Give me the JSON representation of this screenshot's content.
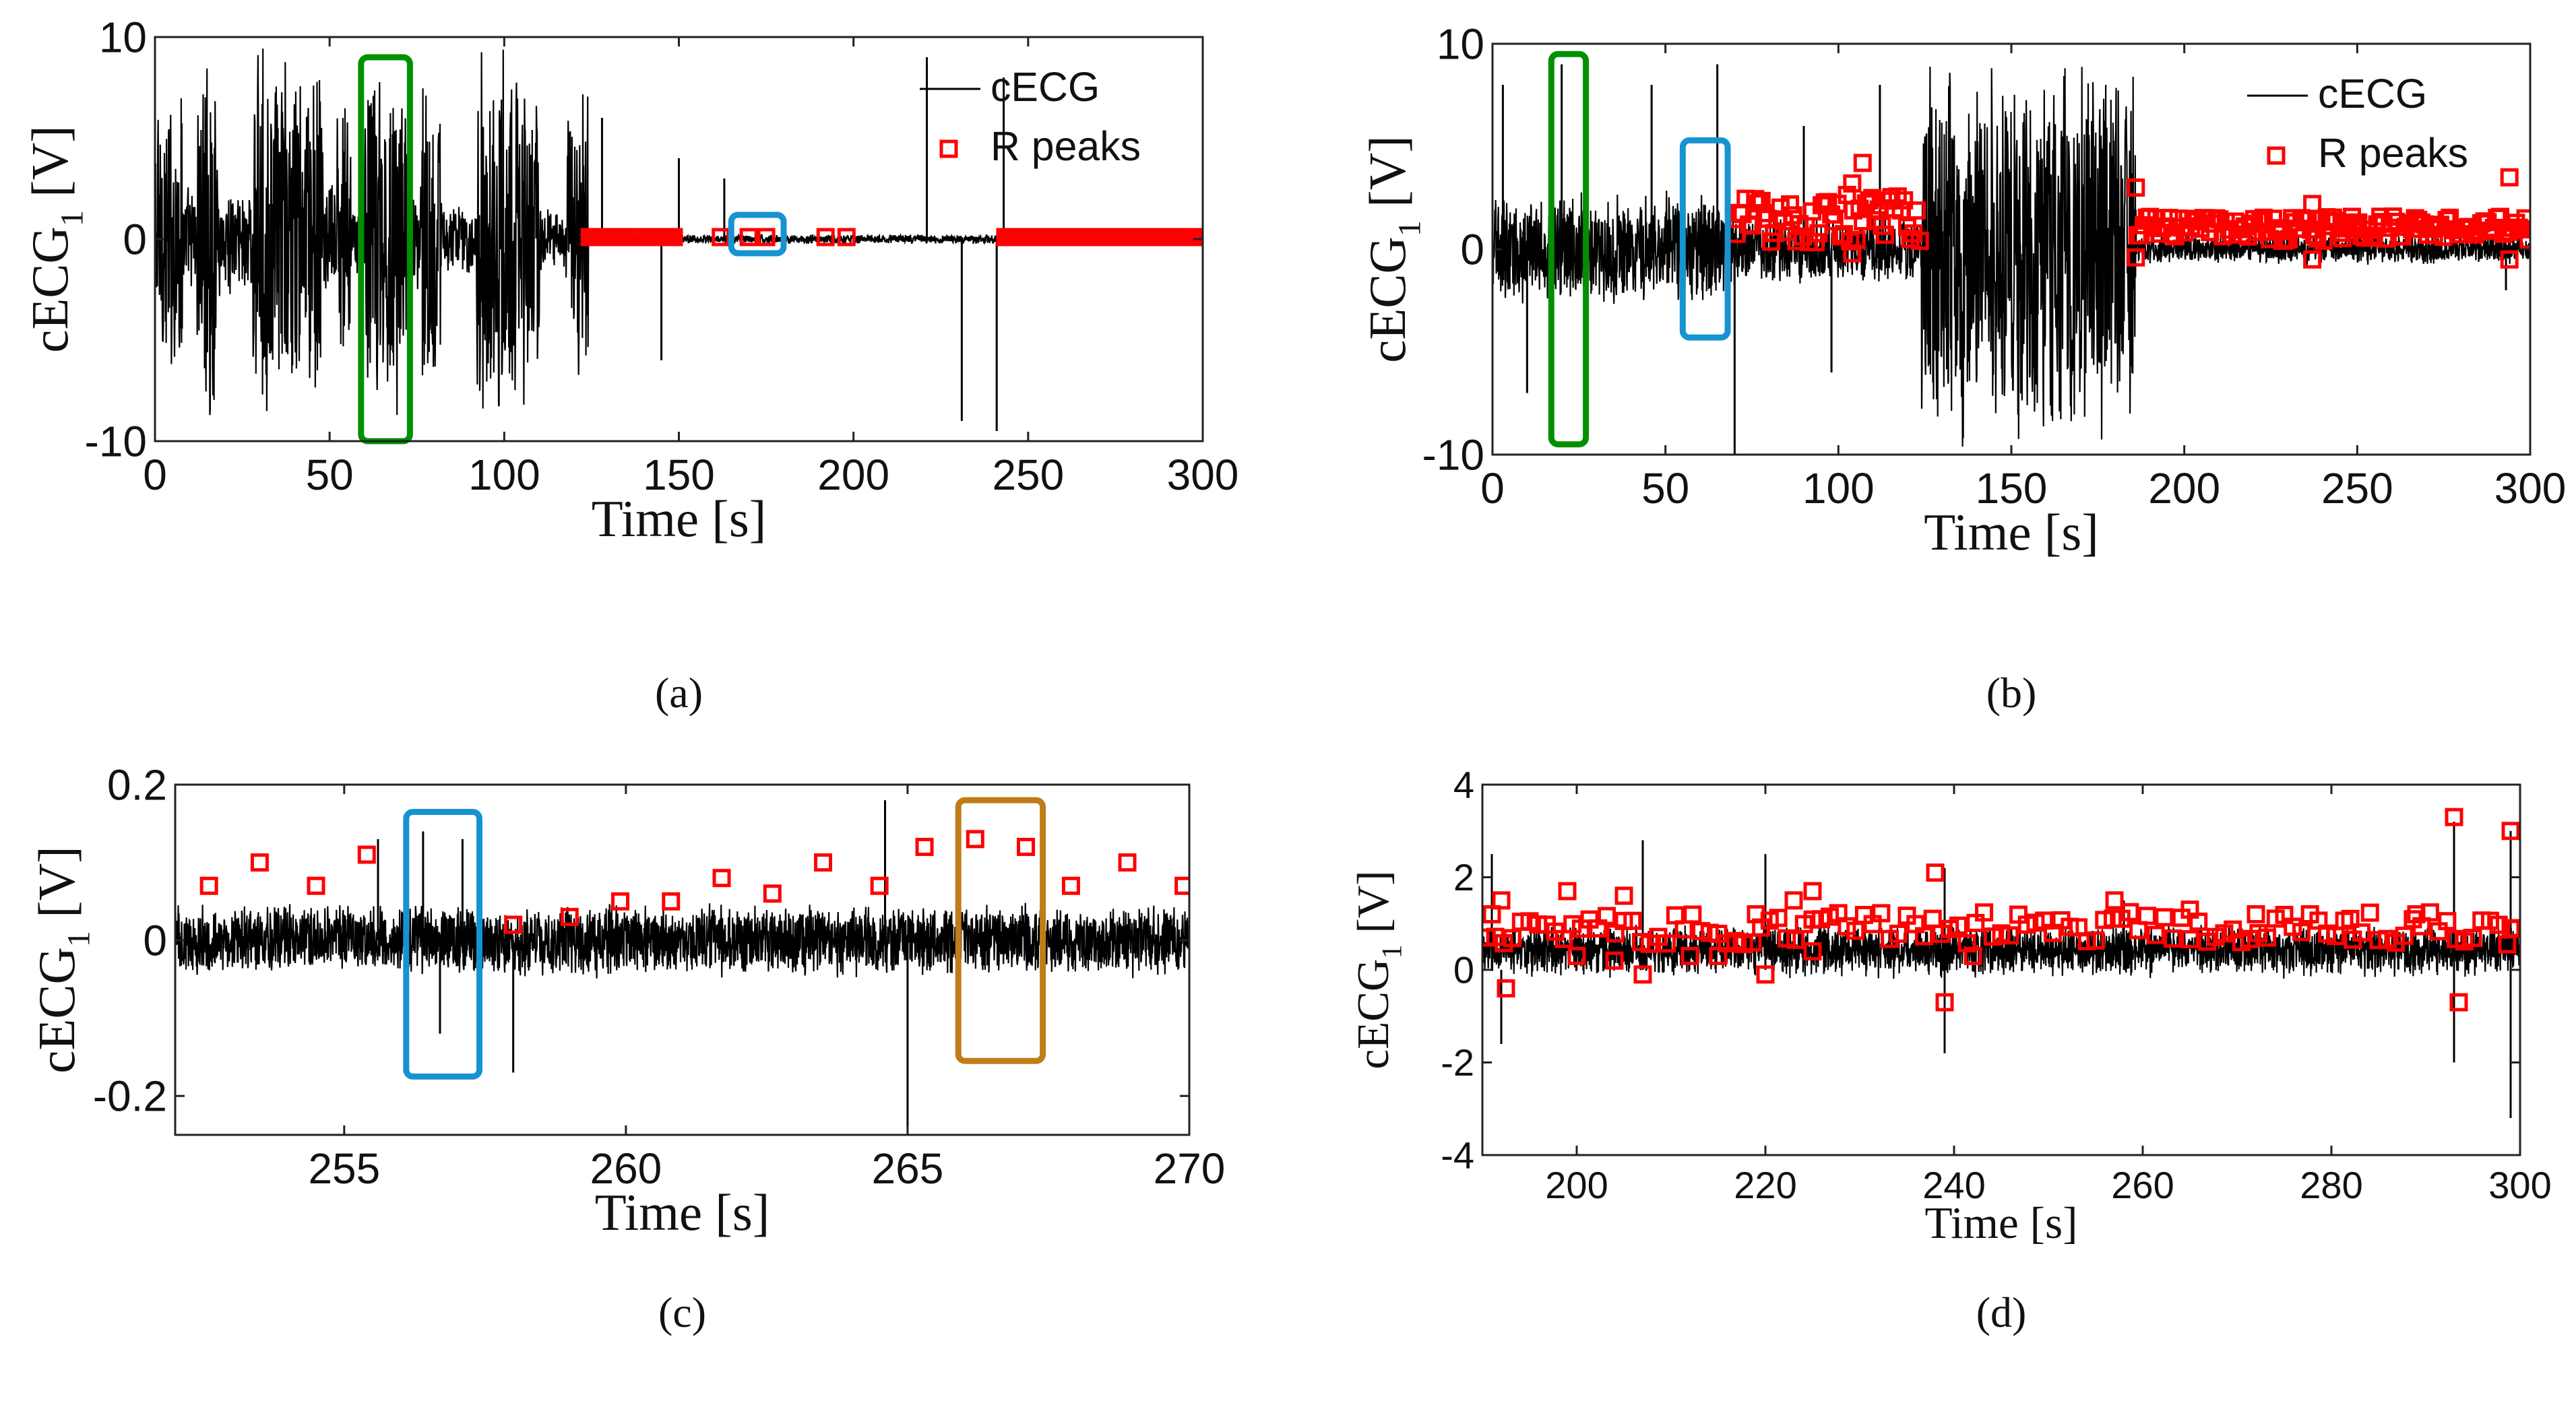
{
  "chart_data": [
    {
      "panel": "(a)",
      "type": "line",
      "xlabel": "Time [s]",
      "ylabel": "cECG",
      "ylabel_sub": "1",
      "ylabel_unit": " [V]",
      "xlim": [
        0,
        300
      ],
      "ylim": [
        -10,
        10
      ],
      "xticks": [
        0,
        50,
        100,
        150,
        200,
        250,
        300
      ],
      "yticks": [
        -10,
        0,
        10
      ],
      "legend": {
        "position": "top-right",
        "entries": [
          "cECG",
          "R peaks"
        ]
      },
      "series": [
        {
          "name": "cECG",
          "color": "#000000",
          "kind": "signal",
          "segments": [
            {
              "from": 0,
              "to": 8,
              "amp": 8.5
            },
            {
              "from": 8,
              "to": 12,
              "amp": 3
            },
            {
              "from": 12,
              "to": 18,
              "amp": 10
            },
            {
              "from": 18,
              "to": 28,
              "amp": 3
            },
            {
              "from": 28,
              "to": 48,
              "amp": 10
            },
            {
              "from": 48,
              "to": 52,
              "amp": 3
            },
            {
              "from": 52,
              "to": 56,
              "amp": 8
            },
            {
              "from": 56,
              "to": 60,
              "amp": 2
            },
            {
              "from": 60,
              "to": 72,
              "amp": 10
            },
            {
              "from": 72,
              "to": 76,
              "amp": 3
            },
            {
              "from": 76,
              "to": 82,
              "amp": 9
            },
            {
              "from": 82,
              "to": 92,
              "amp": 2
            },
            {
              "from": 92,
              "to": 110,
              "amp": 10
            },
            {
              "from": 110,
              "to": 118,
              "amp": 2
            },
            {
              "from": 118,
              "to": 124,
              "amp": 8.5
            },
            {
              "from": 124,
              "to": 300,
              "amp": 0.25
            }
          ],
          "spikes": [
            [
              128,
              6
            ],
            [
              145,
              -6
            ],
            [
              150,
              4
            ],
            [
              163,
              3
            ],
            [
              221,
              9
            ],
            [
              231,
              -9
            ],
            [
              241,
              -9.5
            ],
            [
              243,
              8
            ]
          ]
        },
        {
          "name": "R peaks",
          "color": "#ff0000",
          "kind": "markers",
          "clusters": [
            {
              "from": 124,
              "to": 138,
              "y": 0.1
            },
            {
              "from": 141,
              "to": 149,
              "y": 0.1
            },
            {
              "from": 243,
              "to": 300,
              "y": 0.1
            }
          ],
          "points": [
            [
              162,
              0.1
            ],
            [
              170,
              0.1
            ],
            [
              175,
              0.1
            ],
            [
              192,
              0.1
            ],
            [
              198,
              0.1
            ],
            [
              284,
              0.1
            ]
          ]
        }
      ],
      "annotations": [
        {
          "type": "rect",
          "color": "#009000",
          "x": [
            59,
            73
          ],
          "y": [
            -10,
            9
          ]
        },
        {
          "type": "rect",
          "color": "#1793d0",
          "x": [
            165,
            180
          ],
          "y": [
            -0.7,
            1.2
          ]
        }
      ]
    },
    {
      "panel": "(b)",
      "type": "line",
      "xlabel": "Time [s]",
      "ylabel": "cECG",
      "ylabel_sub": "1",
      "ylabel_unit": " [V]",
      "xlim": [
        0,
        300
      ],
      "ylim": [
        -10,
        10
      ],
      "xticks": [
        0,
        50,
        100,
        150,
        200,
        250,
        300
      ],
      "yticks": [
        -10,
        0,
        10
      ],
      "legend": {
        "position": "top-right",
        "entries": [
          "cECG",
          "R peaks"
        ]
      },
      "series": [
        {
          "name": "cECG",
          "color": "#000000",
          "kind": "signal",
          "segments": [
            {
              "from": 0,
              "to": 70,
              "amp": 3
            },
            {
              "from": 70,
              "to": 124,
              "amp": 1.8
            },
            {
              "from": 124,
              "to": 186,
              "amp": 10
            },
            {
              "from": 186,
              "to": 300,
              "amp": 0.8
            }
          ],
          "spikes": [
            [
              3,
              8
            ],
            [
              10,
              -7
            ],
            [
              20,
              9
            ],
            [
              46,
              8
            ],
            [
              65,
              9
            ],
            [
              70,
              -10
            ],
            [
              90,
              6
            ],
            [
              98,
              -6
            ],
            [
              112,
              8
            ],
            [
              293,
              -2
            ]
          ]
        },
        {
          "name": "R peaks",
          "color": "#ff0000",
          "kind": "markers",
          "clusters": [
            {
              "from": 70,
              "to": 124,
              "y": 1.5,
              "spread": 1.2
            },
            {
              "from": 186,
              "to": 300,
              "y": 1.0,
              "spread": 0.6
            }
          ],
          "points": [
            [
              107,
              4.2
            ],
            [
              104,
              3.2
            ],
            [
              104,
              -0.2
            ],
            [
              186,
              3
            ],
            [
              186,
              -0.4
            ],
            [
              237,
              2.2
            ],
            [
              237,
              -0.5
            ],
            [
              294,
              3.5
            ],
            [
              294,
              -0.5
            ]
          ]
        }
      ],
      "annotations": [
        {
          "type": "rect",
          "color": "#009000",
          "x": [
            17,
            27
          ],
          "y": [
            -9.5,
            9.5
          ]
        },
        {
          "type": "rect",
          "color": "#1793d0",
          "x": [
            55,
            68
          ],
          "y": [
            -4.3,
            5.3
          ]
        }
      ]
    },
    {
      "panel": "(c)",
      "type": "line",
      "xlabel": "Time [s]",
      "ylabel": "cECG",
      "ylabel_sub": "1",
      "ylabel_unit": " [V]",
      "xlim": [
        252,
        270
      ],
      "ylim": [
        -0.25,
        0.2
      ],
      "xticks": [
        255,
        260,
        265,
        270
      ],
      "yticks": [
        -0.2,
        0,
        0.2
      ],
      "series": [
        {
          "name": "cECG",
          "color": "#000000",
          "kind": "signal",
          "segments": [
            {
              "from": 252,
              "to": 270,
              "amp": 0.05
            }
          ],
          "spikes": [
            [
              255.6,
              0.13
            ],
            [
              256.4,
              0.14
            ],
            [
              256.7,
              -0.12
            ],
            [
              257.1,
              0.13
            ],
            [
              257.4,
              -0.15
            ],
            [
              258.0,
              -0.17
            ],
            [
              265.0,
              -0.25
            ],
            [
              264.6,
              0.18
            ]
          ]
        },
        {
          "name": "R peaks",
          "color": "#ff0000",
          "kind": "markers",
          "points": [
            [
              252.6,
              0.07
            ],
            [
              253.5,
              0.1
            ],
            [
              254.5,
              0.07
            ],
            [
              255.4,
              0.11
            ],
            [
              258.0,
              0.02
            ],
            [
              259.0,
              0.03
            ],
            [
              259.9,
              0.05
            ],
            [
              260.8,
              0.05
            ],
            [
              261.7,
              0.08
            ],
            [
              262.6,
              0.06
            ],
            [
              263.5,
              0.1
            ],
            [
              264.5,
              0.07
            ],
            [
              265.3,
              0.12
            ],
            [
              266.2,
              0.13
            ],
            [
              267.1,
              0.12
            ],
            [
              267.9,
              0.07
            ],
            [
              268.9,
              0.1
            ],
            [
              269.9,
              0.07
            ]
          ]
        }
      ],
      "annotations": [
        {
          "type": "rect",
          "color": "#1793d0",
          "x": [
            256.1,
            257.4
          ],
          "y": [
            -0.175,
            0.165
          ]
        },
        {
          "type": "rect",
          "color": "#c07c18",
          "x": [
            265.9,
            267.4
          ],
          "y": [
            -0.155,
            0.18
          ]
        }
      ]
    },
    {
      "panel": "(d)",
      "type": "line",
      "xlabel": "Time [s]",
      "ylabel": "cECG",
      "ylabel_sub": "1",
      "ylabel_unit": " [V]",
      "xlim": [
        190,
        300
      ],
      "ylim": [
        -4,
        4
      ],
      "xticks": [
        200,
        220,
        240,
        260,
        280,
        300
      ],
      "yticks": [
        -4,
        -2,
        0,
        2,
        4
      ],
      "series": [
        {
          "name": "cECG",
          "color": "#000000",
          "kind": "signal",
          "segments": [
            {
              "from": 190,
              "to": 300,
              "amp": 0.5,
              "offset": 0.3
            }
          ],
          "spikes": [
            [
              191,
              2.5
            ],
            [
              192,
              -1.6
            ],
            [
              207,
              2.8
            ],
            [
              220,
              2.5
            ],
            [
              239,
              2.2
            ],
            [
              239,
              -1.8
            ],
            [
              258,
              1.5
            ],
            [
              293,
              -2
            ],
            [
              293,
              3.2
            ],
            [
              299,
              3
            ],
            [
              299,
              -3.2
            ]
          ]
        },
        {
          "name": "R peaks",
          "color": "#ff0000",
          "kind": "markers",
          "clusters": [
            {
              "from": 190,
              "to": 300,
              "y": 0.9,
              "spread": 0.35
            }
          ],
          "points": [
            [
              191,
              1.2
            ],
            [
              192,
              1.5
            ],
            [
              192.5,
              -0.4
            ],
            [
              199,
              1.7
            ],
            [
              200,
              0.3
            ],
            [
              205,
              1.6
            ],
            [
              204,
              0.2
            ],
            [
              207,
              -0.1
            ],
            [
              212,
              0.3
            ],
            [
              215,
              0.3
            ],
            [
              219,
              1.2
            ],
            [
              220,
              -0.1
            ],
            [
              223,
              1.5
            ],
            [
              225,
              1.7
            ],
            [
              225,
              0.4
            ],
            [
              238,
              2.1
            ],
            [
              239,
              -0.7
            ],
            [
              242,
              0.3
            ],
            [
              257,
              1.5
            ],
            [
              265,
              1.3
            ],
            [
              272,
              1.2
            ],
            [
              282,
              1.1
            ],
            [
              289,
              1.2
            ],
            [
              293,
              3.3
            ],
            [
              293.5,
              -0.7
            ],
            [
              299,
              3.0
            ],
            [
              299,
              0.9
            ]
          ]
        }
      ],
      "annotations": []
    }
  ]
}
